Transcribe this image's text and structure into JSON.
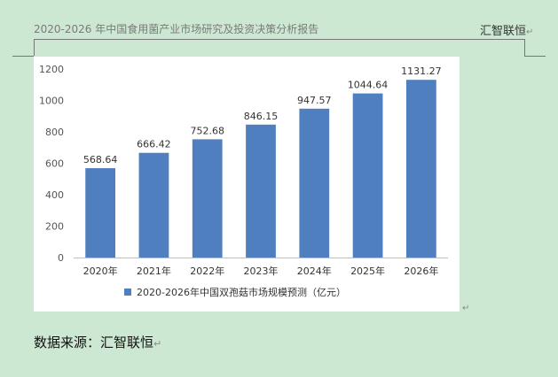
{
  "header": {
    "title": "2020-2026 年中国食用菌产业市场研究及投资决策分析报告",
    "brand": "汇智联恒"
  },
  "source": {
    "text": "数据来源：汇智联恒"
  },
  "colors": {
    "bar": "#4f7fbf",
    "background": "#cde8d2",
    "panel": "#ffffff"
  },
  "chart_data": {
    "type": "bar",
    "categories": [
      "2020年",
      "2021年",
      "2022年",
      "2023年",
      "2024年",
      "2025年",
      "2026年"
    ],
    "series": [
      {
        "name": "2020-2026年中国双孢菇市场规模预测（亿元）",
        "values": [
          568.64,
          666.42,
          752.68,
          846.15,
          947.57,
          1044.64,
          1131.27
        ]
      }
    ],
    "data_labels": [
      "568.64",
      "666.42",
      "752.68",
      "846.15",
      "947.57",
      "1044.64",
      "1131.27"
    ],
    "ylim": [
      0,
      1200
    ],
    "yticks": [
      0,
      200,
      400,
      600,
      800,
      1000,
      1200
    ],
    "grid": false,
    "legend_position": "bottom"
  }
}
